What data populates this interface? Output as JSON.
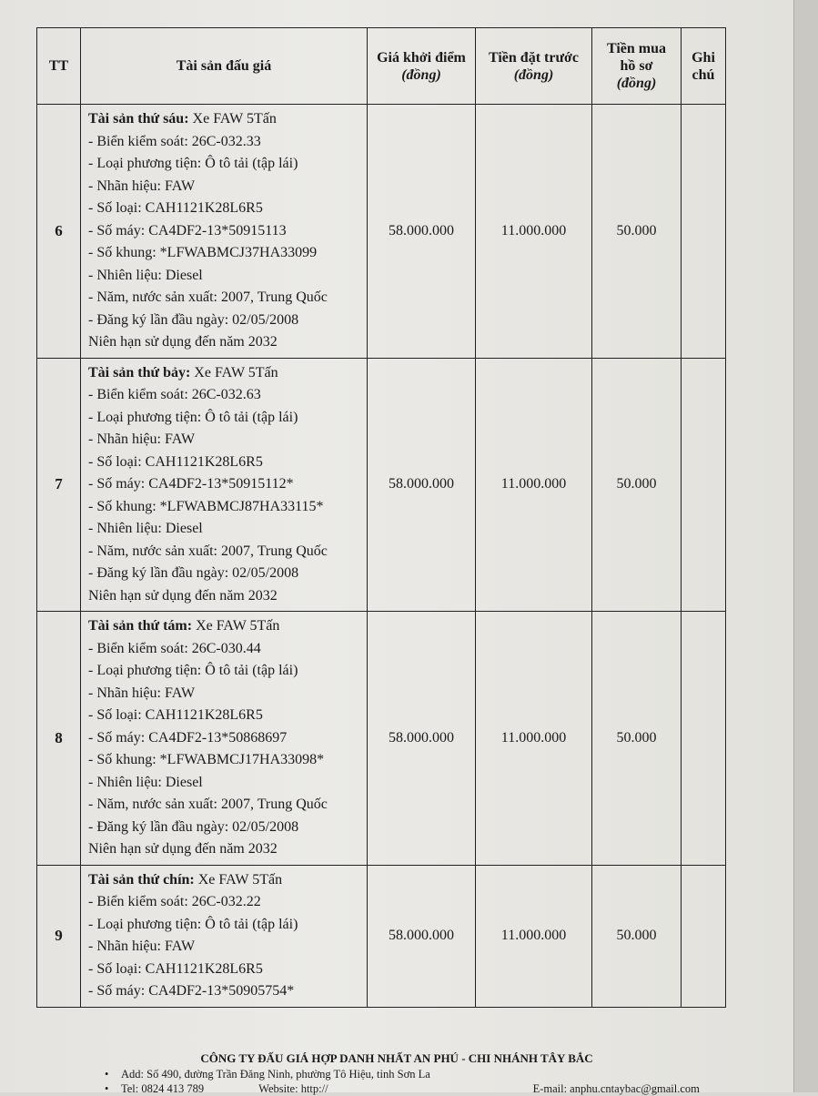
{
  "table": {
    "headers": {
      "tt": "TT",
      "asset": "Tài sản đấu giá",
      "start_price": "Giá khởi điểm",
      "start_price_unit": "(đồng)",
      "deposit": "Tiền đặt trước",
      "deposit_unit": "(đồng)",
      "dossier_1": "Tiền mua",
      "dossier_2": "hồ sơ",
      "dossier_unit": "(đồng)",
      "note_1": "Ghi",
      "note_2": "chú"
    },
    "rows": [
      {
        "tt": "6",
        "title": "Tài sản thứ sáu:",
        "title_rest": " Xe FAW 5Tấn",
        "lines": [
          "- Biển kiểm soát: 26C-032.33",
          "- Loại phương tiện: Ô tô tải (tập lái)",
          "- Nhãn hiệu: FAW",
          "- Số loại: CAH1121K28L6R5",
          "- Số máy: CA4DF2-13*50915113",
          "- Số khung: *LFWABMCJ37HA33099",
          "- Nhiên liệu: Diesel",
          "- Năm, nước sản xuất: 2007, Trung Quốc",
          "- Đăng ký lần đầu ngày: 02/05/2008",
          "Niên hạn sử dụng đến năm 2032"
        ],
        "start_price": "58.000.000",
        "deposit": "11.000.000",
        "dossier": "50.000",
        "note": ""
      },
      {
        "tt": "7",
        "title": "Tài sản thứ bảy:",
        "title_rest": " Xe FAW 5Tấn",
        "lines": [
          "- Biển kiểm soát: 26C-032.63",
          "- Loại phương tiện: Ô tô tải (tập lái)",
          "- Nhãn hiệu: FAW",
          "- Số loại: CAH1121K28L6R5",
          "- Số máy: CA4DF2-13*50915112*",
          "- Số khung: *LFWABMCJ87HA33115*",
          "- Nhiên liệu: Diesel",
          "- Năm, nước sản xuất: 2007, Trung Quốc",
          "- Đăng ký lần đầu ngày: 02/05/2008",
          "Niên hạn sử dụng đến năm 2032"
        ],
        "start_price": "58.000.000",
        "deposit": "11.000.000",
        "dossier": "50.000",
        "note": ""
      },
      {
        "tt": "8",
        "title": "Tài sản thứ tám:",
        "title_rest": " Xe FAW 5Tấn",
        "lines": [
          "- Biển kiểm soát: 26C-030.44",
          "- Loại phương tiện: Ô tô tải (tập lái)",
          "- Nhãn hiệu: FAW",
          "- Số loại: CAH1121K28L6R5",
          "- Số máy: CA4DF2-13*50868697",
          "- Số khung: *LFWABMCJ17HA33098*",
          "- Nhiên liệu: Diesel",
          "- Năm, nước sản xuất: 2007, Trung Quốc",
          "- Đăng ký lần đầu ngày: 02/05/2008",
          "Niên hạn sử dụng đến năm 2032"
        ],
        "start_price": "58.000.000",
        "deposit": "11.000.000",
        "dossier": "50.000",
        "note": ""
      },
      {
        "tt": "9",
        "title": "Tài sản thứ chín:",
        "title_rest": " Xe FAW 5Tấn",
        "lines": [
          "- Biển kiểm soát: 26C-032.22",
          "- Loại phương tiện: Ô tô tải (tập lái)",
          "- Nhãn hiệu: FAW",
          "- Số loại: CAH1121K28L6R5",
          "- Số máy: CA4DF2-13*50905754*"
        ],
        "start_price": "58.000.000",
        "deposit": "11.000.000",
        "dossier": "50.000",
        "note": ""
      }
    ]
  },
  "footer": {
    "company": "CÔNG TY ĐẤU GIÁ HỢP DANH NHẤT AN PHÚ - CHI NHÁNH TÂY BẮC",
    "address": "Add: Số 490, đường Trần Đăng Ninh, phường Tô Hiệu, tỉnh Sơn La",
    "tel": "Tel:   0824 413 789",
    "website": "Website: http://",
    "email": "E-mail: anphu.cntaybac@gmail.com"
  }
}
